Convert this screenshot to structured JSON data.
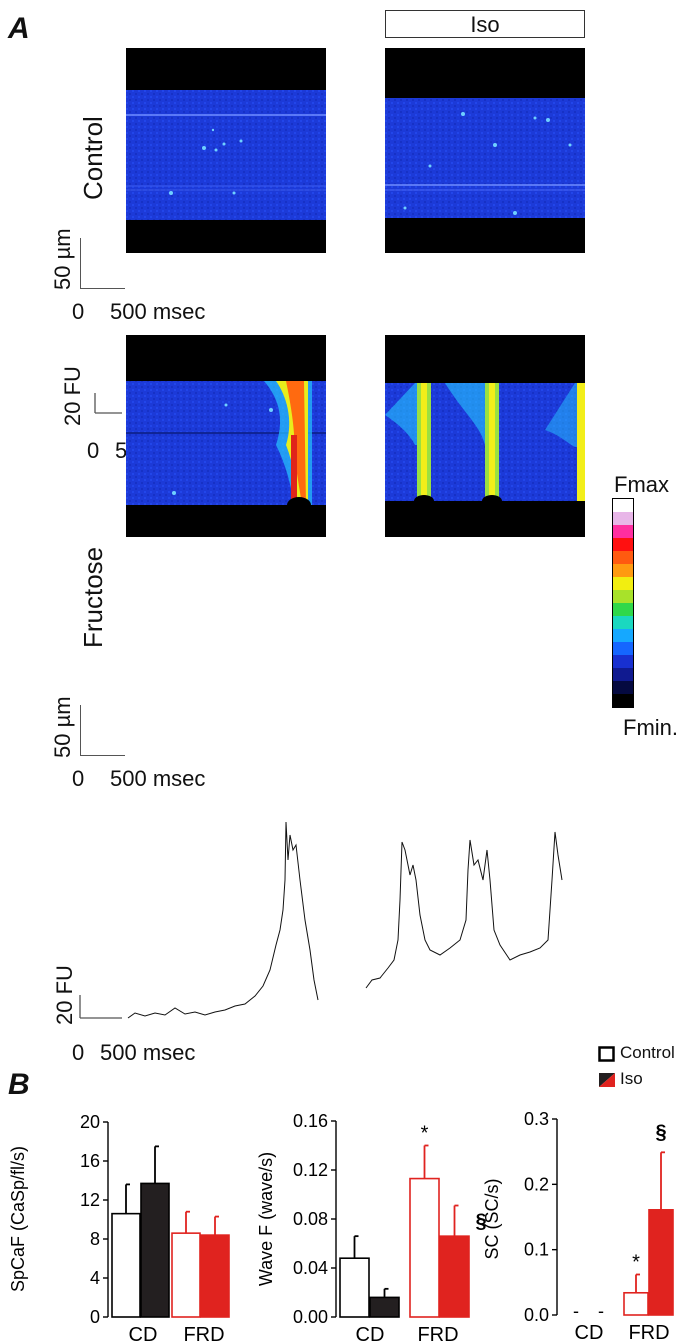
{
  "panel_a": {
    "letter": "A",
    "iso_label": "Iso",
    "row1_label": "Control",
    "row2_label": "Fructose",
    "scale_um": "50 µm",
    "scale_ms_zero": "0",
    "scale_ms": "500 msec",
    "scale_fu": "20 FU",
    "colorbar_max": "Fmax",
    "colorbar_min": "Fmin."
  },
  "panel_b": {
    "letter": "B",
    "legend_control": "Control",
    "legend_iso": "Iso",
    "colors": {
      "control_cd": "#ffffff",
      "iso_cd": "#231f20",
      "frd": "#e0231f",
      "outline": "#000000"
    }
  },
  "chart_data": [
    {
      "type": "bar",
      "ylabel": "SpCaF (CaSp/fl/s)",
      "ylim": [
        0,
        20
      ],
      "yticks": [
        "0",
        "4",
        "8",
        "12",
        "16",
        "20"
      ],
      "categories": [
        "CD",
        "FRD"
      ],
      "series": [
        {
          "name": "Control",
          "values": [
            10.6,
            8.6
          ],
          "errors": [
            3.0,
            2.2
          ]
        },
        {
          "name": "Iso",
          "values": [
            13.7,
            8.4
          ],
          "errors": [
            3.8,
            1.9
          ]
        }
      ],
      "annotations": []
    },
    {
      "type": "bar",
      "ylabel": "Wave F (wave/s)",
      "ylim": [
        0,
        0.16
      ],
      "yticks": [
        "0.00",
        "0.04",
        "0.08",
        "0.12",
        "0.16"
      ],
      "categories": [
        "CD",
        "FRD"
      ],
      "series": [
        {
          "name": "Control",
          "values": [
            0.048,
            0.113
          ],
          "errors": [
            0.018,
            0.027
          ]
        },
        {
          "name": "Iso",
          "values": [
            0.016,
            0.066
          ],
          "errors": [
            0.007,
            0.025
          ]
        }
      ],
      "annotations": [
        {
          "text": "*",
          "category": "FRD",
          "series": "Control"
        },
        {
          "text": "§",
          "category": "FRD",
          "series": "Iso"
        }
      ]
    },
    {
      "type": "bar",
      "ylabel": "SC (SC/s)",
      "ylim": [
        0,
        0.3
      ],
      "yticks": [
        "0.0",
        "0.1",
        "0.2",
        "0.3"
      ],
      "categories": [
        "CD",
        "FRD"
      ],
      "series": [
        {
          "name": "Control",
          "values": [
            0,
            0.034
          ],
          "errors": [
            0,
            0.028
          ]
        },
        {
          "name": "Iso",
          "values": [
            0,
            0.161
          ],
          "errors": [
            0,
            0.088
          ]
        }
      ],
      "annotations": [
        {
          "text": "-",
          "category": "CD",
          "series": "Control"
        },
        {
          "text": "-",
          "category": "CD",
          "series": "Iso"
        },
        {
          "text": "*",
          "category": "FRD",
          "series": "Control"
        },
        {
          "text": "§",
          "category": "FRD",
          "series": "Iso"
        }
      ]
    }
  ]
}
